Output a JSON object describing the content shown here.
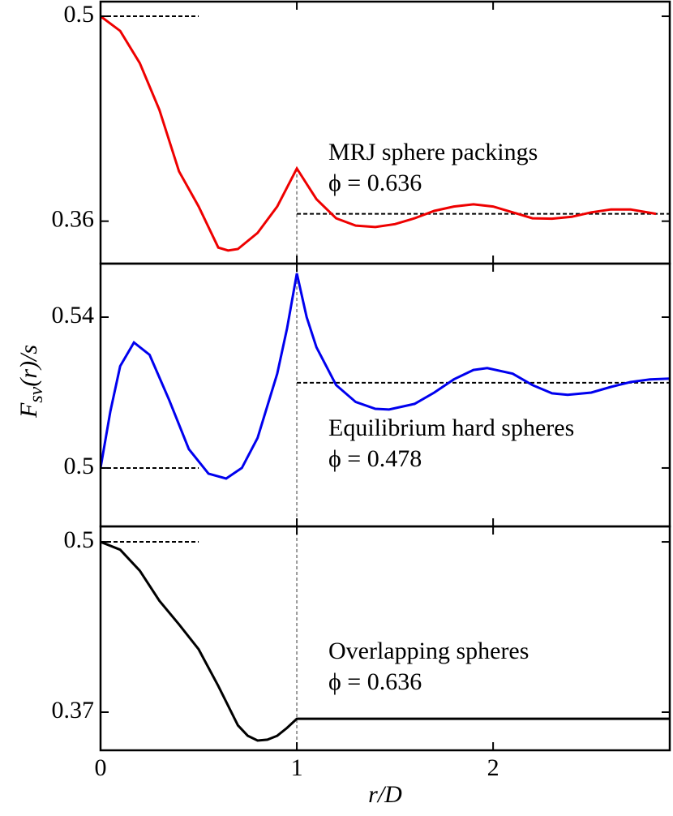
{
  "chart_data": [
    {
      "type": "line",
      "annotation": [
        "MRJ sphere packings",
        "ϕ = 0.636"
      ],
      "x": [
        0,
        0.1,
        0.2,
        0.3,
        0.4,
        0.5,
        0.6,
        0.65,
        0.7,
        0.8,
        0.9,
        1.0,
        1.1,
        1.2,
        1.3,
        1.4,
        1.5,
        1.6,
        1.7,
        1.8,
        1.9,
        2.0,
        2.1,
        2.2,
        2.3,
        2.4,
        2.5,
        2.6,
        2.7,
        2.83
      ],
      "series": [
        {
          "color": "#ee0000",
          "values": [
            0.5,
            0.49,
            0.468,
            0.436,
            0.394,
            0.37,
            0.342,
            0.34,
            0.341,
            0.352,
            0.37,
            0.396,
            0.375,
            0.362,
            0.357,
            0.356,
            0.358,
            0.362,
            0.367,
            0.37,
            0.3715,
            0.37,
            0.366,
            0.362,
            0.3617,
            0.363,
            0.366,
            0.368,
            0.368,
            0.365
          ]
        }
      ],
      "reference_lines": [
        {
          "y": 0.5,
          "x": [
            0,
            0.5
          ]
        },
        {
          "y": 0.365,
          "x": [
            1,
            2.9
          ]
        }
      ],
      "vline": 1,
      "xlim": [
        0,
        2.9
      ],
      "xticks": [
        0,
        1,
        2
      ],
      "ylim": [
        0.331,
        0.51
      ],
      "yticks": [
        0.36,
        0.5
      ]
    },
    {
      "type": "line",
      "annotation": [
        "Equilibrium hard spheres",
        "ϕ = 0.478"
      ],
      "y_label": {
        "main": "F",
        "sub": "sv",
        "rest": "(r)/s"
      },
      "x": [
        0,
        0.05,
        0.1,
        0.17,
        0.25,
        0.35,
        0.45,
        0.55,
        0.64,
        0.72,
        0.8,
        0.9,
        0.95,
        1.0,
        1.05,
        1.1,
        1.2,
        1.3,
        1.4,
        1.47,
        1.6,
        1.7,
        1.8,
        1.9,
        1.97,
        2.1,
        2.2,
        2.3,
        2.38,
        2.5,
        2.6,
        2.7,
        2.8,
        2.9
      ],
      "series": [
        {
          "color": "#0000ee",
          "values": [
            0.5,
            0.515,
            0.527,
            0.5333,
            0.53,
            0.518,
            0.505,
            0.4985,
            0.4972,
            0.5,
            0.508,
            0.525,
            0.537,
            0.5516,
            0.54,
            0.532,
            0.522,
            0.5175,
            0.5157,
            0.5155,
            0.517,
            0.52,
            0.5235,
            0.526,
            0.5265,
            0.525,
            0.522,
            0.5198,
            0.5194,
            0.52,
            0.5215,
            0.5228,
            0.5235,
            0.5237
          ]
        }
      ],
      "reference_lines": [
        {
          "y": 0.5,
          "x": [
            0,
            0.5
          ]
        },
        {
          "y": 0.5226,
          "x": [
            1,
            2.9
          ]
        }
      ],
      "vline": 1,
      "xlim": [
        0,
        2.9
      ],
      "xticks": [
        0,
        1,
        2
      ],
      "ylim": [
        0.4845,
        0.5542
      ],
      "yticks": [
        0.5,
        0.54
      ]
    },
    {
      "type": "line",
      "annotation": [
        "Overlapping spheres",
        "ϕ = 0.636"
      ],
      "x_label": "r/D",
      "x": [
        0,
        0.1,
        0.2,
        0.3,
        0.4,
        0.5,
        0.6,
        0.7,
        0.75,
        0.8,
        0.85,
        0.9,
        0.95,
        1.0,
        2.9
      ],
      "series": [
        {
          "color": "#000000",
          "values": [
            0.5,
            0.494,
            0.478,
            0.455,
            0.437,
            0.418,
            0.39,
            0.36,
            0.352,
            0.3483,
            0.349,
            0.352,
            0.358,
            0.365,
            0.365
          ]
        }
      ],
      "reference_lines": [
        {
          "y": 0.5,
          "x": [
            0,
            0.5
          ]
        }
      ],
      "vline": 1,
      "xlim": [
        0,
        2.9
      ],
      "xticks": [
        0,
        1,
        2
      ],
      "ylim": [
        0.3409,
        0.5118
      ],
      "yticks": [
        0.37,
        0.5
      ]
    }
  ]
}
